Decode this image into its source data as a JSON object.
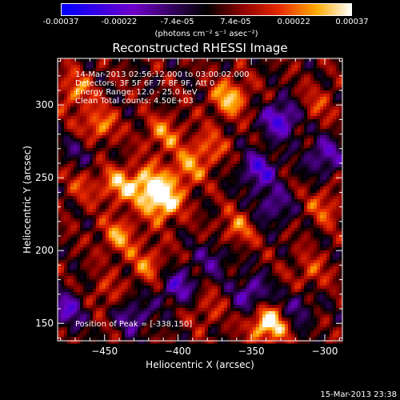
{
  "chart_data": {
    "type": "heatmap",
    "title": "Reconstructed RHESSI Image",
    "xlabel": "Heliocentric X (arcsec)",
    "ylabel": "Heliocentric Y (arcsec)",
    "xlim": [
      -482,
      -288
    ],
    "ylim": [
      138,
      332
    ],
    "x_ticks": [
      -450,
      -400,
      -350,
      -300
    ],
    "y_ticks": [
      150,
      200,
      250,
      300
    ],
    "colorbar": {
      "ticks": [
        "-0.00037",
        "-0.00022",
        "-7.4e-05",
        "7.4e-05",
        "0.00022",
        "0.00037"
      ],
      "unit": "(photons cm⁻² s⁻¹ asec⁻²)",
      "range": [
        -0.00037,
        0.00037
      ]
    },
    "annotations": [
      "14-Mar-2013 02:56:12.000 to 03:00:02.000",
      "Detectors: 3F 5F 6F 7F 8F 9F, Att 0",
      "Energy Range: 12.0 - 25.0 keV",
      "Clean     Total counts: 4.50E+03"
    ],
    "peak_label": "Position of Peak = [-338,150]",
    "peak_position": [
      -338,
      150
    ],
    "hotspots": [
      {
        "x": -338,
        "y": 150,
        "v": 1.0
      },
      {
        "x": -410,
        "y": 233,
        "v": 0.85
      },
      {
        "x": -420,
        "y": 245,
        "v": 0.72
      },
      {
        "x": -440,
        "y": 245,
        "v": 0.6
      },
      {
        "x": -455,
        "y": 285,
        "v": 0.6
      },
      {
        "x": -365,
        "y": 305,
        "v": 0.7
      },
      {
        "x": -440,
        "y": 210,
        "v": 0.55
      },
      {
        "x": -410,
        "y": 280,
        "v": 0.5
      },
      {
        "x": -380,
        "y": 270,
        "v": 0.45
      },
      {
        "x": -470,
        "y": 310,
        "v": 0.5
      },
      {
        "x": -420,
        "y": 190,
        "v": 0.45
      },
      {
        "x": -360,
        "y": 215,
        "v": 0.45
      },
      {
        "x": -395,
        "y": 255,
        "v": 0.5
      },
      {
        "x": -305,
        "y": 300,
        "v": 0.3
      },
      {
        "x": -300,
        "y": 230,
        "v": 0.4
      },
      {
        "x": -310,
        "y": 185,
        "v": 0.35
      },
      {
        "x": -465,
        "y": 245,
        "v": 0.3
      },
      {
        "x": -380,
        "y": 160,
        "v": 0.3
      },
      {
        "x": -450,
        "y": 170,
        "v": 0.3
      }
    ],
    "coldspots": [
      {
        "x": -330,
        "y": 290,
        "v": -0.8
      },
      {
        "x": -345,
        "y": 255,
        "v": -0.7
      },
      {
        "x": -300,
        "y": 265,
        "v": -0.6
      },
      {
        "x": -335,
        "y": 230,
        "v": -0.5
      },
      {
        "x": -350,
        "y": 170,
        "v": -0.6
      },
      {
        "x": -400,
        "y": 175,
        "v": -0.6
      },
      {
        "x": -475,
        "y": 160,
        "v": -0.6
      },
      {
        "x": -430,
        "y": 155,
        "v": -0.5
      },
      {
        "x": -320,
        "y": 160,
        "v": -0.45
      },
      {
        "x": -465,
        "y": 270,
        "v": -0.35
      },
      {
        "x": -375,
        "y": 195,
        "v": -0.4
      }
    ]
  },
  "timestamp": "15-Mar-2013 23:38"
}
